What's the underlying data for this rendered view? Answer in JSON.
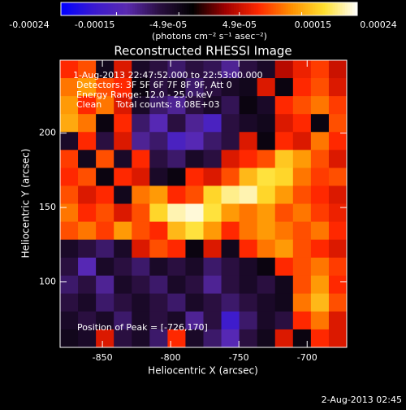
{
  "chart_data": {
    "type": "heatmap",
    "title": "Reconstructed RHESSI Image",
    "x_label": "Heliocentric X (arcsec)",
    "y_label": "Heliocentric Y (arcsec)",
    "colorbar_label": "(photons cm⁻² s⁻¹ asec⁻²)",
    "annotations": [
      "1-Aug-2013 22:47:52.000 to 22:53:00.000",
      "Detectors: 3F 5F 6F 7F 8F 9F, Att 0",
      "Energy Range: 12.0 - 25.0 keV",
      "Clean     Total counts: 8.08E+03",
      "Position of Peak = [-726,170]"
    ],
    "footer": "2-Aug-2013 02:45",
    "xlim": [
      -881,
      -671
    ],
    "ylim": [
      56,
      249
    ],
    "xticks": [
      -850,
      -800,
      -750,
      -700
    ],
    "yticks": [
      100,
      150,
      200
    ],
    "colorbar_lim": [
      -0.00024,
      0.00024
    ],
    "colorbar_ticks": [
      -0.00024,
      -0.00015,
      {
        "value": -4.9e-05,
        "label": "-4.9e-05"
      },
      {
        "value": 4.9e-05,
        "label": "4.9e-05"
      },
      0.00015,
      0.00024
    ],
    "colormap": [
      "#0000ff",
      "#3a1ad0",
      "#5a2ab0",
      "#2a0f40",
      "#000000",
      "#a00000",
      "#ff2800",
      "#ff9000",
      "#ffe030",
      "#ffffff"
    ],
    "z": [
      [
        8e-05,
        0.0001,
        -5e-05,
        6e-05,
        -6e-05,
        -8e-05,
        -0.0001,
        -8e-05,
        -9e-05,
        -0.00012,
        -8e-05,
        -6e-05,
        4e-05,
        7e-05,
        9e-05,
        5e-05
      ],
      [
        0.00012,
        0.00014,
        0.0001,
        8e-05,
        -4e-05,
        -8e-05,
        -6e-05,
        -0.0001,
        -8e-05,
        -6e-05,
        -5e-05,
        6e-05,
        -4e-05,
        8e-05,
        0.0001,
        6e-05
      ],
      [
        0.00014,
        8e-05,
        0.00012,
        6e-05,
        -6e-05,
        -0.0001,
        -0.00012,
        -8e-05,
        -6e-05,
        -9e-05,
        -4e-05,
        -6e-05,
        8e-05,
        0.0001,
        0.00012,
        9e-05
      ],
      [
        0.00015,
        0.00012,
        -4e-05,
        8e-05,
        -0.0001,
        -0.00014,
        -8e-05,
        -0.00012,
        -0.00016,
        -8e-05,
        -6e-05,
        -5e-05,
        6e-05,
        8e-05,
        -4e-05,
        0.0001
      ],
      [
        -6e-05,
        8e-05,
        -8e-05,
        6e-05,
        -0.00012,
        -0.0001,
        -0.00016,
        -0.00014,
        -0.0001,
        -8e-05,
        6e-05,
        -4e-05,
        8e-05,
        6e-05,
        0.00012,
        8e-05
      ],
      [
        9e-05,
        -5e-05,
        0.0001,
        -6e-05,
        8e-05,
        -8e-05,
        -0.0001,
        -6e-05,
        -8e-05,
        6e-05,
        8e-05,
        0.0001,
        0.00017,
        0.00014,
        0.0001,
        6e-05
      ],
      [
        8e-05,
        0.0001,
        -4e-05,
        8e-05,
        6e-05,
        -6e-05,
        -4e-05,
        8e-05,
        6e-05,
        0.0001,
        0.00016,
        0.00019,
        0.00018,
        0.00012,
        9e-05,
        0.0001
      ],
      [
        0.0001,
        6e-05,
        8e-05,
        -5e-05,
        0.00012,
        0.00014,
        8e-05,
        0.0001,
        0.00018,
        0.00021,
        0.00022,
        0.00018,
        0.00014,
        0.0001,
        8e-05,
        6e-05
      ],
      [
        0.00012,
        8e-05,
        0.0001,
        6e-05,
        0.0001,
        0.00018,
        0.00022,
        0.00023,
        0.00019,
        0.00014,
        0.00012,
        0.00014,
        0.0001,
        0.00012,
        9e-05,
        7e-05
      ],
      [
        0.0001,
        0.00012,
        9e-05,
        0.00014,
        0.0001,
        8e-05,
        0.00016,
        0.00019,
        0.00014,
        8e-05,
        0.00012,
        0.00014,
        0.00012,
        0.0001,
        0.00012,
        8e-05
      ],
      [
        -6e-05,
        -8e-05,
        -0.0001,
        -6e-05,
        6e-05,
        0.0001,
        8e-05,
        -4e-05,
        6e-05,
        -5e-05,
        8e-05,
        0.00012,
        0.00014,
        0.0001,
        8e-05,
        6e-05
      ],
      [
        -8e-05,
        -0.00014,
        -6e-05,
        -8e-05,
        -0.0001,
        -6e-05,
        -8e-05,
        -6e-05,
        -0.0001,
        -8e-05,
        -6e-05,
        -4e-05,
        8e-05,
        0.0001,
        0.00012,
        9e-05
      ],
      [
        -0.0001,
        -8e-05,
        -0.00012,
        -6e-05,
        -8e-05,
        -0.0001,
        -6e-05,
        -8e-05,
        -0.00012,
        -8e-05,
        -6e-05,
        -8e-05,
        -5e-05,
        0.0001,
        0.00014,
        8e-05
      ],
      [
        -8e-05,
        -6e-05,
        -0.0001,
        -8e-05,
        -6e-05,
        -8e-05,
        -0.0001,
        -6e-05,
        -8e-05,
        -0.0001,
        -8e-05,
        -6e-05,
        -5e-05,
        0.00012,
        0.00016,
        0.0001
      ],
      [
        -6e-05,
        -8e-05,
        -6e-05,
        -0.0001,
        -6e-05,
        -8e-05,
        -6e-05,
        -0.00012,
        -8e-05,
        -0.00018,
        -0.0001,
        -6e-05,
        -8e-05,
        8e-05,
        0.00012,
        6e-05
      ],
      [
        -5e-05,
        -6e-05,
        6e-05,
        -8e-05,
        -6e-05,
        -0.0001,
        8e-05,
        -6e-05,
        -0.0001,
        -0.00014,
        -8e-05,
        -5e-05,
        6e-05,
        -4e-05,
        8e-05,
        6e-05
      ]
    ]
  }
}
